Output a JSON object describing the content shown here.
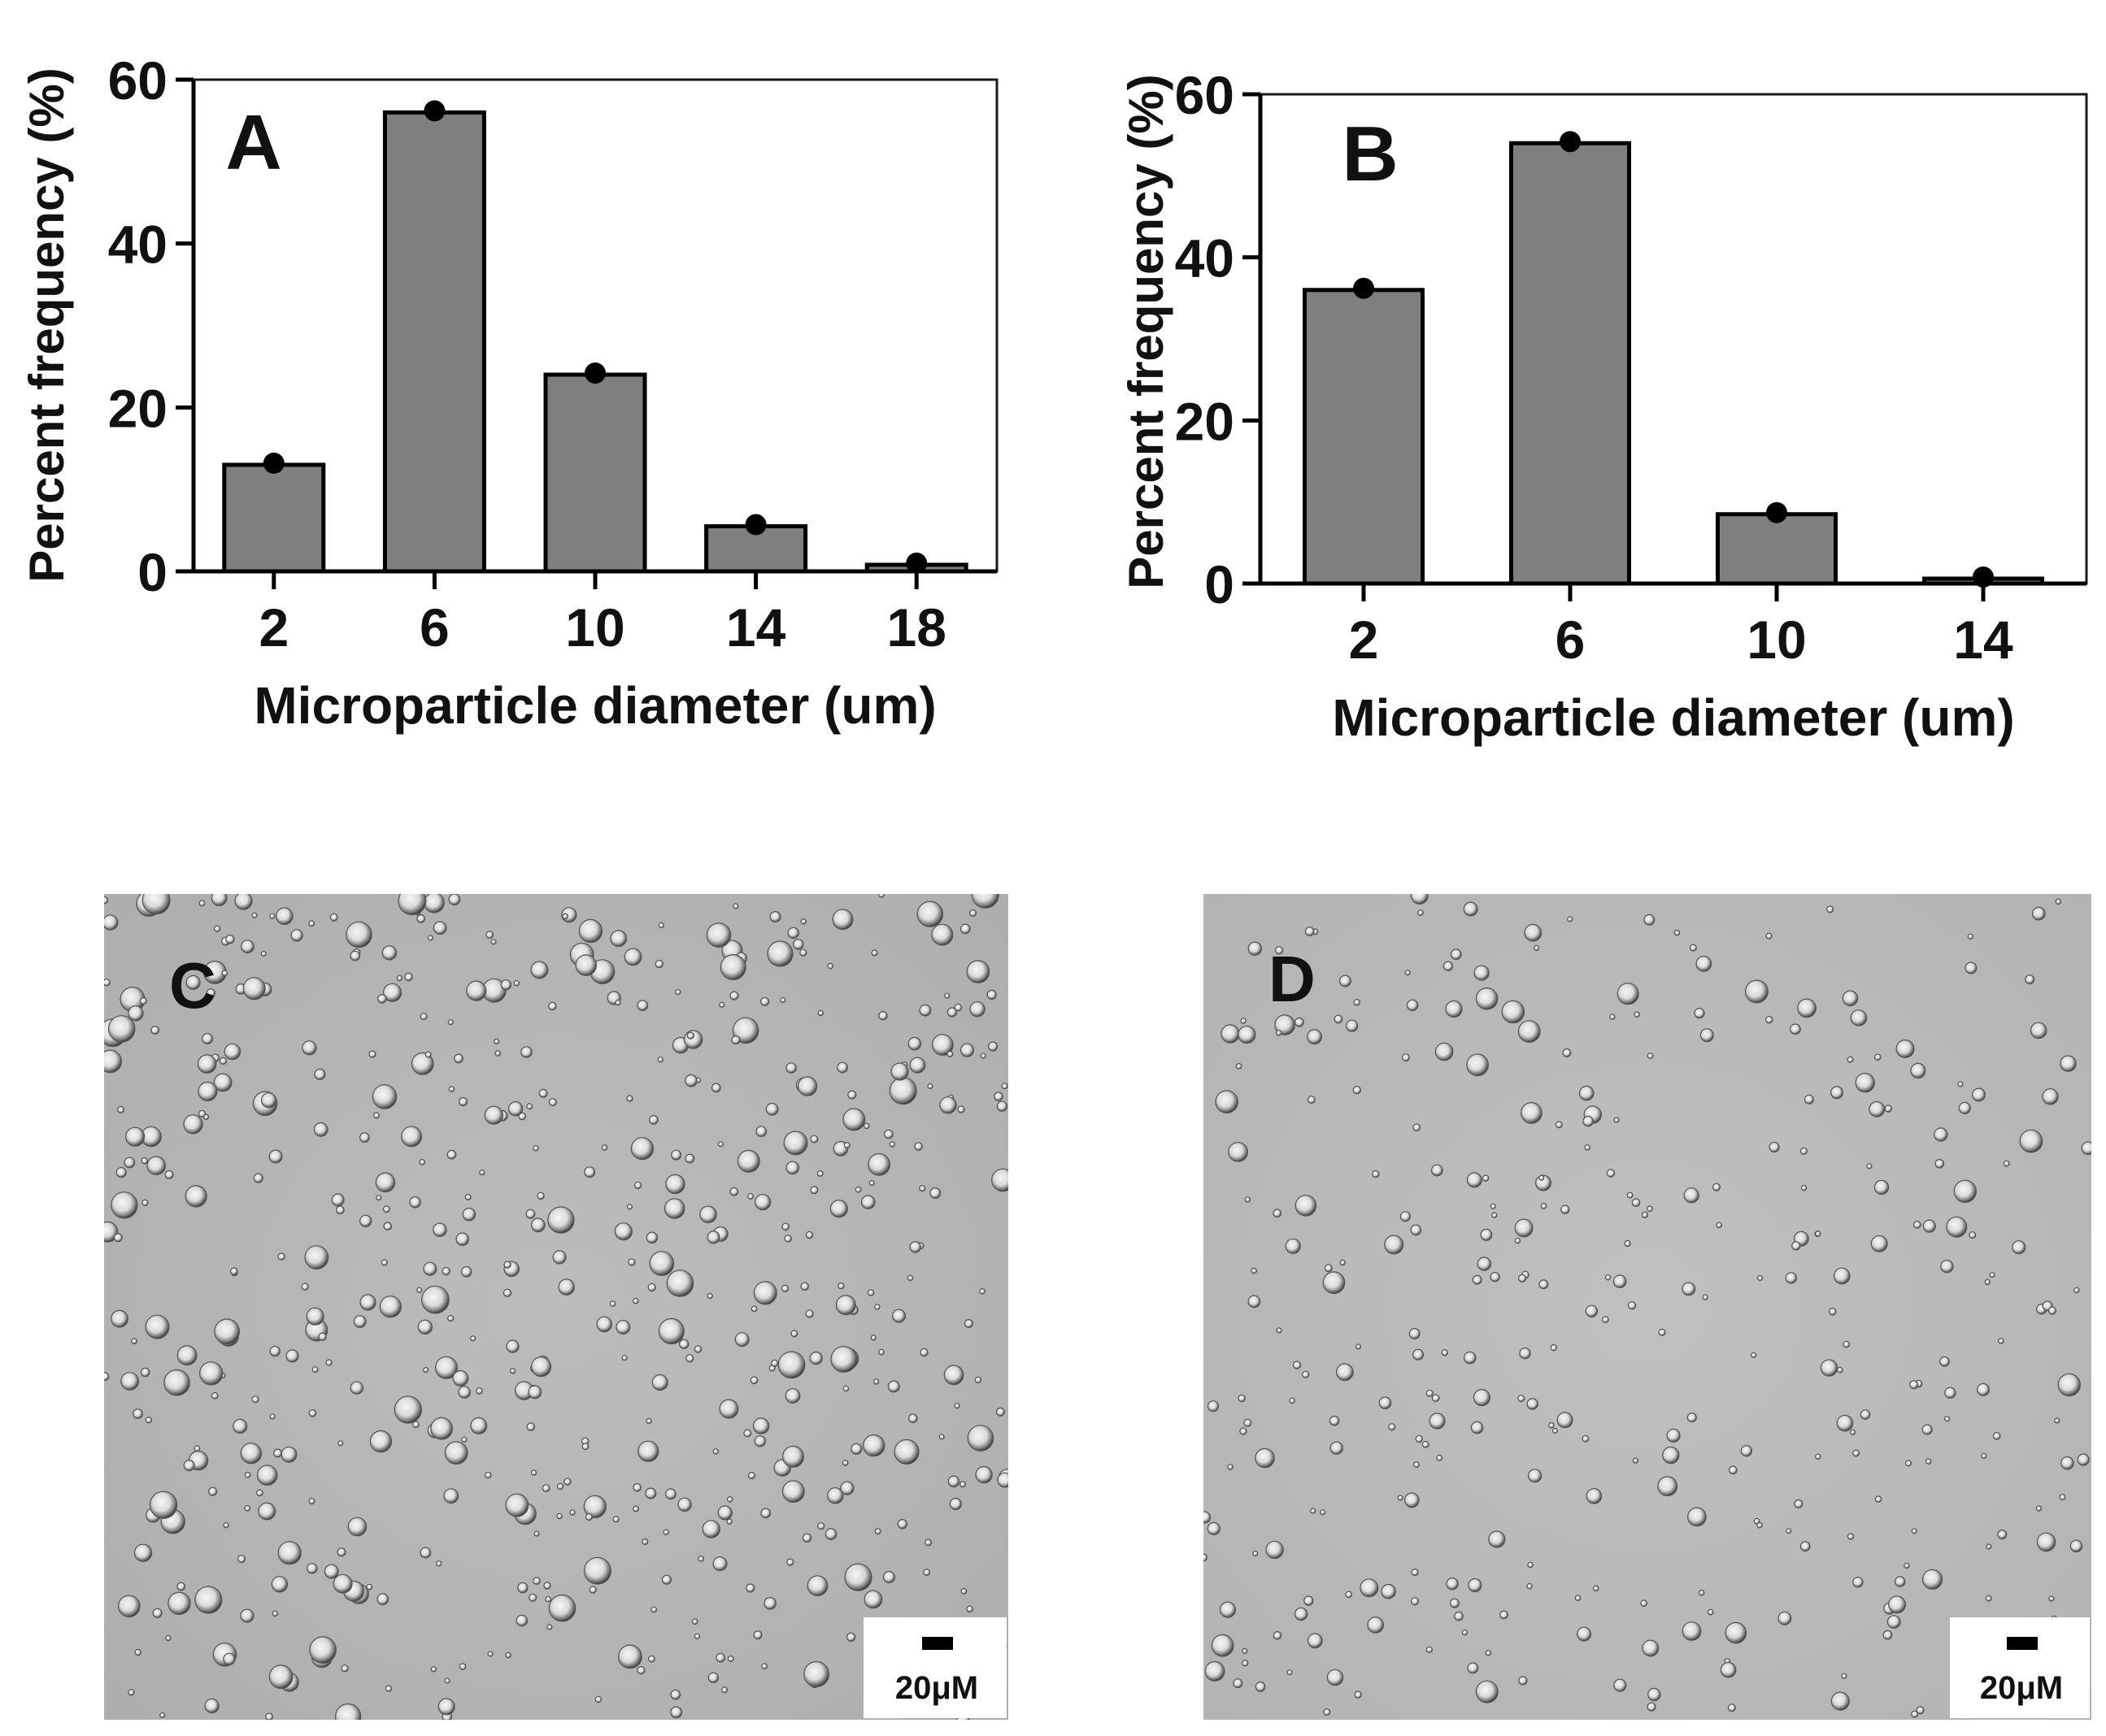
{
  "chart_data": [
    {
      "type": "bar",
      "panel_label": "A",
      "categories": [
        "2",
        "6",
        "10",
        "14",
        "18"
      ],
      "values": [
        13,
        56,
        24,
        5.5,
        0.8
      ],
      "xlabel": "Microparticle diameter (um)",
      "ylabel": "Percent frequency (%)",
      "ylim": [
        0,
        60
      ],
      "yticks": [
        "0",
        "20",
        "40",
        "60"
      ],
      "grid": false,
      "bar_color": "#7f7f7f",
      "marker_color": "#000000"
    },
    {
      "type": "bar",
      "panel_label": "B",
      "categories": [
        "2",
        "6",
        "10",
        "14"
      ],
      "values": [
        36,
        54,
        8.5,
        0.6
      ],
      "xlabel": "Microparticle diameter (um)",
      "ylabel": "Percent  frequency (%)",
      "ylim": [
        0,
        60
      ],
      "yticks": [
        "0",
        "20",
        "40",
        "60"
      ],
      "grid": false,
      "bar_color": "#7f7f7f",
      "marker_color": "#000000"
    }
  ],
  "micrographs": [
    {
      "panel_label": "C",
      "scale_bar_label": "20μM",
      "background_color": "#b5b5b5"
    },
    {
      "panel_label": "D",
      "scale_bar_label": "20μM",
      "background_color": "#bababa"
    }
  ]
}
